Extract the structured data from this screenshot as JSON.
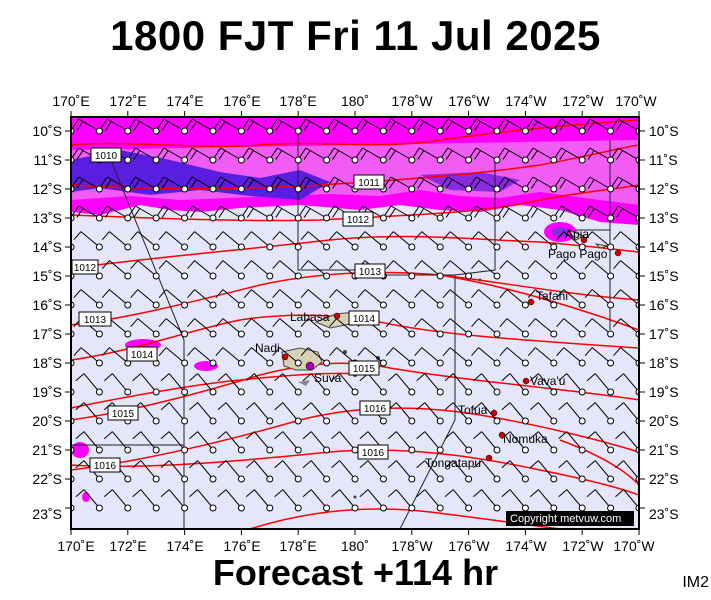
{
  "header": {
    "title": "1800 FJT Fri 11 Jul 2025"
  },
  "footer": {
    "forecast": "Forecast +114 hr",
    "code": "IM2"
  },
  "map": {
    "lon_labels": [
      "170˚E",
      "172˚E",
      "174˚E",
      "176˚E",
      "178˚E",
      "180˚",
      "178˚W",
      "176˚W",
      "174˚W",
      "172˚W",
      "170˚W"
    ],
    "lat_labels": [
      "10˚S",
      "11˚S",
      "12˚S",
      "13˚S",
      "14˚S",
      "15˚S",
      "16˚S",
      "17˚S",
      "18˚S",
      "19˚S",
      "20˚S",
      "21˚S",
      "22˚S",
      "23˚S"
    ],
    "isobars": [
      "1010",
      "1011",
      "1012",
      "1012",
      "1013",
      "1013",
      "1014",
      "1014",
      "1015",
      "1015",
      "1016",
      "1016",
      "1016"
    ],
    "places": [
      "Apia",
      "Pago Pago",
      "Tafahi",
      "Labasa",
      "Nadi",
      "Suva",
      "Vava'u",
      "Tofua",
      "Nomuka",
      "Tongatapu"
    ],
    "copyright": "Copyright metvuw.com",
    "colors": {
      "rain_heavy": "#5a1ee0",
      "rain_moderate": "#ff00ff",
      "background": "#e6e6fa",
      "isobar": "#ff0000",
      "land": "#d8d2b4",
      "town": "#cc0000"
    }
  }
}
